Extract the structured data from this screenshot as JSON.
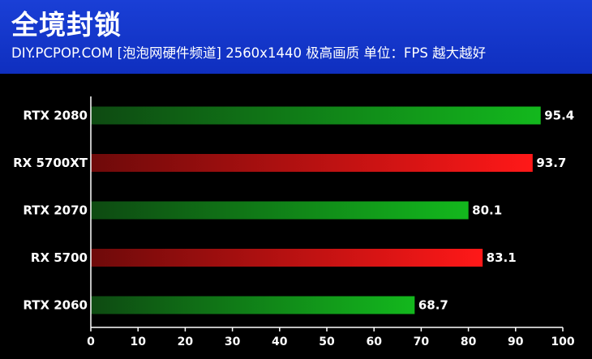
{
  "header": {
    "title": "全境封锁",
    "subtitle": "DIY.PCPOP.COM [泡泡网硬件频道]  2560x1440 极高画质  单位：FPS 越大越好"
  },
  "colors": {
    "header_bg": "#1a3fd6",
    "background": "#000000",
    "nvidia_bar_dark": "#0e4a12",
    "nvidia_bar_light": "#13b81d",
    "amd_bar_dark": "#6e0a0a",
    "amd_bar_light": "#ff1818"
  },
  "chart_data": {
    "type": "bar",
    "orientation": "horizontal",
    "categories": [
      "RTX 2080",
      "RX 5700XT",
      "RTX 2070",
      "RX 5700",
      "RTX 2060"
    ],
    "values": [
      95.4,
      93.7,
      80.1,
      83.1,
      68.7
    ],
    "bar_colors": [
      "green",
      "red",
      "green",
      "red",
      "green"
    ],
    "xlim": [
      0,
      100
    ],
    "xticks": [
      0,
      10,
      20,
      30,
      40,
      50,
      60,
      70,
      80,
      90,
      100
    ],
    "title": "全境封锁",
    "xlabel": "",
    "ylabel": "",
    "grid": false,
    "legend": "none"
  }
}
